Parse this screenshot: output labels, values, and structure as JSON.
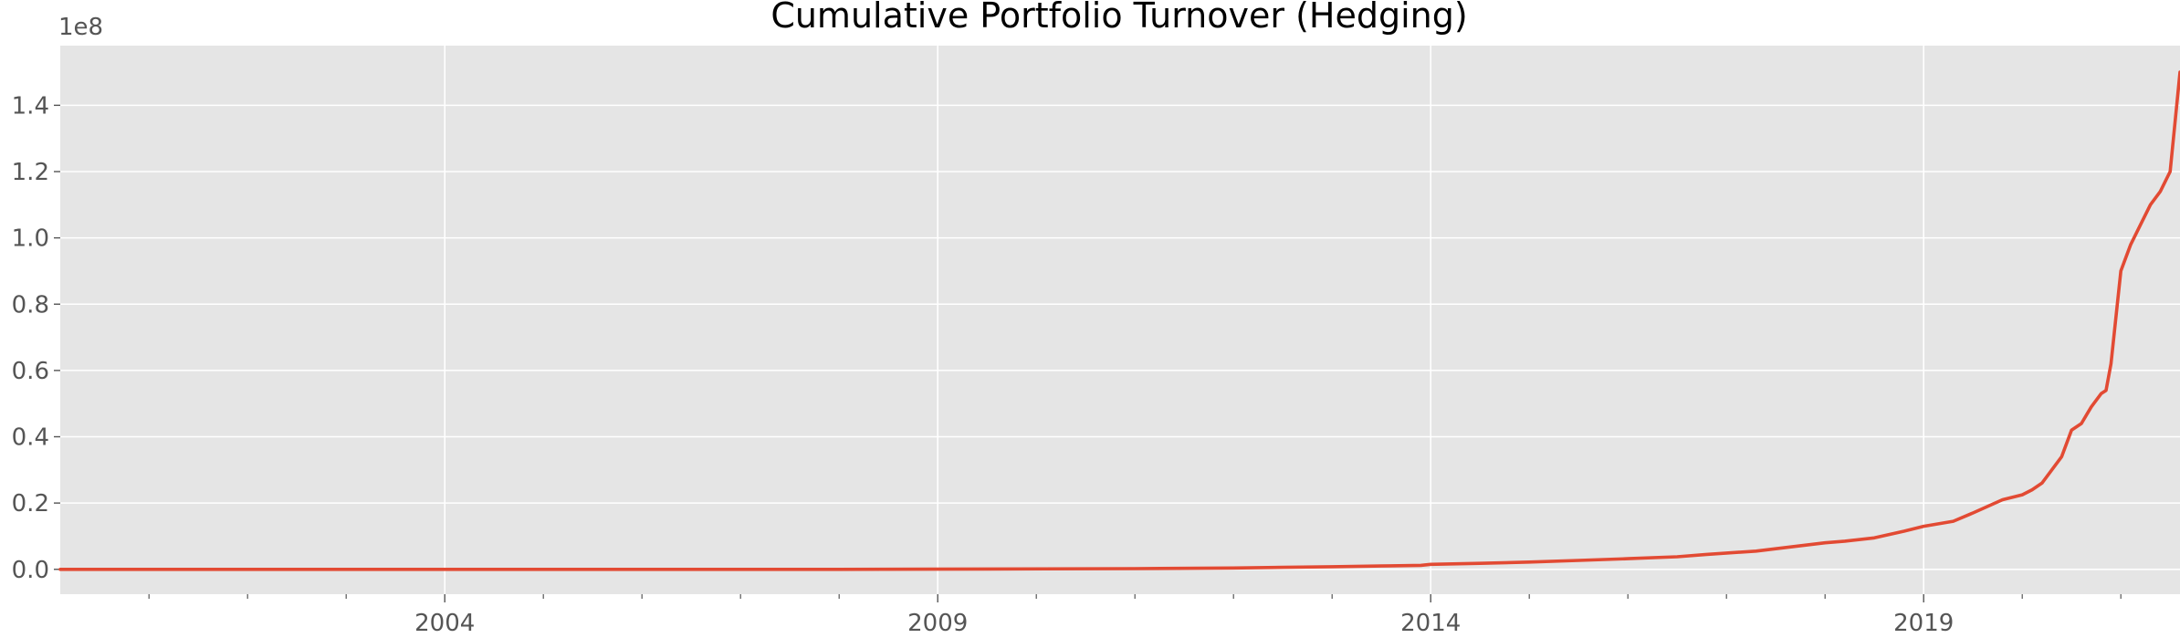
{
  "chart_data": {
    "type": "line",
    "title": "Cumulative Portfolio Turnover (Hedging)",
    "xlabel": "",
    "ylabel": "",
    "y_multiplier_label": "1e8",
    "style": "ggplot",
    "grid": true,
    "legend": "none",
    "colors": {
      "background": "#e5e5e5",
      "grid": "#ffffff",
      "line": "#e24a33",
      "text": "#555555"
    },
    "xlim": [
      2000.1,
      2021.6
    ],
    "ylim": [
      -0.075,
      1.58
    ],
    "x_ticks": [
      {
        "value": 2004,
        "label": "2004"
      },
      {
        "value": 2009,
        "label": "2009"
      },
      {
        "value": 2014,
        "label": "2014"
      },
      {
        "value": 2019,
        "label": "2019"
      }
    ],
    "x_minor_ticks": [
      2001,
      2002,
      2003,
      2005,
      2006,
      2007,
      2008,
      2010,
      2011,
      2012,
      2013,
      2015,
      2016,
      2017,
      2018,
      2020,
      2021
    ],
    "y_ticks": [
      {
        "value": 0.0,
        "label": "0.0"
      },
      {
        "value": 0.2,
        "label": "0.2"
      },
      {
        "value": 0.4,
        "label": "0.4"
      },
      {
        "value": 0.6,
        "label": "0.6"
      },
      {
        "value": 0.8,
        "label": "0.8"
      },
      {
        "value": 1.0,
        "label": "1.0"
      },
      {
        "value": 1.2,
        "label": "1.2"
      },
      {
        "value": 1.4,
        "label": "1.4"
      }
    ],
    "series": [
      {
        "x": [
          2000.1,
          2004.0,
          2008.0,
          2009.5,
          2011.0,
          2012.0,
          2012.5,
          2013.0,
          2013.5,
          2013.9,
          2014.0,
          2014.5,
          2015.0,
          2015.5,
          2016.0,
          2016.5,
          2016.8,
          2017.3,
          2017.5,
          2018.0,
          2018.2,
          2018.5,
          2018.8,
          2019.0,
          2019.3,
          2019.5,
          2019.8,
          2020.0,
          2020.1,
          2020.2,
          2020.3,
          2020.4,
          2020.5,
          2020.6,
          2020.7,
          2020.8,
          2020.85,
          2020.9,
          2021.0,
          2021.1,
          2021.2,
          2021.3,
          2021.4,
          2021.5,
          2021.6
        ],
        "values": [
          0.0,
          0.0,
          0.0,
          0.001,
          0.002,
          0.004,
          0.006,
          0.008,
          0.01,
          0.012,
          0.015,
          0.018,
          0.022,
          0.027,
          0.032,
          0.038,
          0.045,
          0.055,
          0.062,
          0.08,
          0.085,
          0.095,
          0.115,
          0.13,
          0.145,
          0.17,
          0.21,
          0.225,
          0.24,
          0.26,
          0.3,
          0.34,
          0.42,
          0.44,
          0.49,
          0.53,
          0.54,
          0.62,
          0.9,
          0.98,
          1.04,
          1.1,
          1.14,
          1.2,
          1.5
        ]
      }
    ]
  }
}
